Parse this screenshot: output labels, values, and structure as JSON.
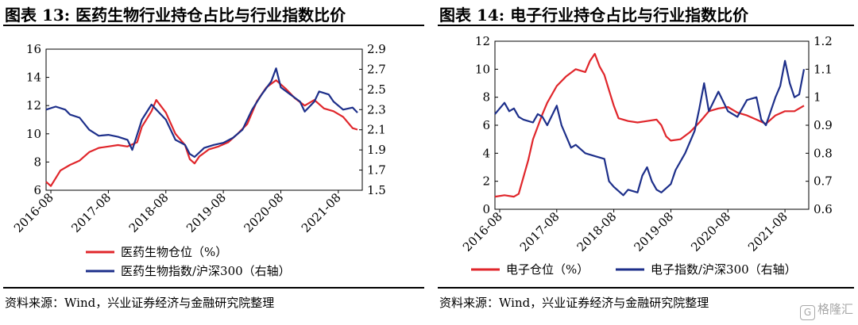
{
  "chart_data": [
    {
      "type": "line",
      "title": "图表 13:  医药生物行业持仓占比与行业指数比价",
      "source": "资料来源：Wind，兴业证券经济与金融研究院整理",
      "x_ticks": [
        "2016-08",
        "2017-08",
        "2018-08",
        "2019-08",
        "2020-08",
        "2021-08"
      ],
      "x_range": [
        "2016-07",
        "2022-01"
      ],
      "y_left": {
        "min": 6,
        "max": 16,
        "ticks": [
          "6",
          "8",
          "10",
          "12",
          "14",
          "16"
        ]
      },
      "y_right": {
        "min": 1.5,
        "max": 2.9,
        "ticks": [
          "1.5",
          "1.7",
          "1.9",
          "2.1",
          "2.3",
          "2.5",
          "2.7",
          "2.9"
        ]
      },
      "grid": false,
      "legend_position": "bottom-center",
      "series": [
        {
          "name": "医药生物仓位（%）",
          "axis": "left",
          "color": "#e0262b",
          "points": [
            [
              "2016-07",
              6.6
            ],
            [
              "2016-08",
              6.3
            ],
            [
              "2016-10",
              7.4
            ],
            [
              "2016-12",
              7.8
            ],
            [
              "2017-02",
              8.1
            ],
            [
              "2017-04",
              8.7
            ],
            [
              "2017-06",
              9.0
            ],
            [
              "2017-08",
              9.1
            ],
            [
              "2017-10",
              9.2
            ],
            [
              "2017-12",
              9.1
            ],
            [
              "2018-02",
              9.4
            ],
            [
              "2018-03",
              10.5
            ],
            [
              "2018-05",
              11.6
            ],
            [
              "2018-06",
              12.4
            ],
            [
              "2018-08",
              11.5
            ],
            [
              "2018-10",
              10.0
            ],
            [
              "2018-12",
              9.2
            ],
            [
              "2019-01",
              8.2
            ],
            [
              "2019-02",
              7.9
            ],
            [
              "2019-03",
              8.4
            ],
            [
              "2019-05",
              8.9
            ],
            [
              "2019-07",
              9.1
            ],
            [
              "2019-09",
              9.4
            ],
            [
              "2019-11",
              10.0
            ],
            [
              "2020-01",
              10.7
            ],
            [
              "2020-03",
              12.3
            ],
            [
              "2020-05",
              13.3
            ],
            [
              "2020-07",
              13.8
            ],
            [
              "2020-09",
              13.2
            ],
            [
              "2020-11",
              12.5
            ],
            [
              "2021-01",
              12.0
            ],
            [
              "2021-03",
              12.4
            ],
            [
              "2021-05",
              11.8
            ],
            [
              "2021-07",
              11.6
            ],
            [
              "2021-09",
              11.2
            ],
            [
              "2021-11",
              10.4
            ],
            [
              "2021-12",
              10.3
            ]
          ]
        },
        {
          "name": "医药生物指数/沪深300（右轴）",
          "axis": "right",
          "color": "#1d2f8a",
          "points": [
            [
              "2016-07",
              2.3
            ],
            [
              "2016-09",
              2.33
            ],
            [
              "2016-11",
              2.3
            ],
            [
              "2016-12",
              2.25
            ],
            [
              "2017-02",
              2.22
            ],
            [
              "2017-04",
              2.1
            ],
            [
              "2017-06",
              2.04
            ],
            [
              "2017-08",
              2.05
            ],
            [
              "2017-10",
              2.03
            ],
            [
              "2017-12",
              2.0
            ],
            [
              "2018-01",
              1.9
            ],
            [
              "2018-02",
              2.05
            ],
            [
              "2018-03",
              2.2
            ],
            [
              "2018-05",
              2.35
            ],
            [
              "2018-06",
              2.3
            ],
            [
              "2018-08",
              2.2
            ],
            [
              "2018-10",
              2.0
            ],
            [
              "2018-12",
              1.95
            ],
            [
              "2019-01",
              1.86
            ],
            [
              "2019-02",
              1.83
            ],
            [
              "2019-04",
              1.92
            ],
            [
              "2019-06",
              1.95
            ],
            [
              "2019-08",
              1.97
            ],
            [
              "2019-10",
              2.02
            ],
            [
              "2019-12",
              2.1
            ],
            [
              "2020-02",
              2.3
            ],
            [
              "2020-04",
              2.45
            ],
            [
              "2020-06",
              2.58
            ],
            [
              "2020-07",
              2.71
            ],
            [
              "2020-08",
              2.52
            ],
            [
              "2020-10",
              2.45
            ],
            [
              "2020-12",
              2.38
            ],
            [
              "2021-01",
              2.28
            ],
            [
              "2021-03",
              2.38
            ],
            [
              "2021-04",
              2.48
            ],
            [
              "2021-06",
              2.45
            ],
            [
              "2021-07",
              2.38
            ],
            [
              "2021-09",
              2.3
            ],
            [
              "2021-11",
              2.32
            ],
            [
              "2021-12",
              2.27
            ]
          ]
        }
      ]
    },
    {
      "type": "line",
      "title": "图表 14:  电子行业持仓占比与行业指数比价",
      "source": "资料来源：Wind，兴业证券经济与金融研究院整理",
      "x_ticks": [
        "2016-08",
        "2017-08",
        "2018-08",
        "2019-08",
        "2020-08",
        "2021-08"
      ],
      "x_range": [
        "2016-07",
        "2022-01"
      ],
      "y_left": {
        "min": 0,
        "max": 12,
        "ticks": [
          "0",
          "2",
          "4",
          "6",
          "8",
          "10",
          "12"
        ]
      },
      "y_right": {
        "min": 0.6,
        "max": 1.2,
        "ticks": [
          "0.6",
          "0.7",
          "0.8",
          "0.9",
          "1",
          "1.1",
          "1.2"
        ]
      },
      "grid": false,
      "legend_position": "bottom-center",
      "series": [
        {
          "name": "电子仓位（%）",
          "axis": "left",
          "color": "#e0262b",
          "points": [
            [
              "2016-07",
              0.9
            ],
            [
              "2016-09",
              1.0
            ],
            [
              "2016-11",
              0.9
            ],
            [
              "2016-12",
              1.1
            ],
            [
              "2017-02",
              3.5
            ],
            [
              "2017-03",
              5.0
            ],
            [
              "2017-05",
              6.8
            ],
            [
              "2017-06",
              7.6
            ],
            [
              "2017-08",
              8.8
            ],
            [
              "2017-10",
              9.5
            ],
            [
              "2017-12",
              10.0
            ],
            [
              "2018-02",
              9.8
            ],
            [
              "2018-03",
              10.6
            ],
            [
              "2018-04",
              11.1
            ],
            [
              "2018-05",
              10.2
            ],
            [
              "2018-06",
              9.6
            ],
            [
              "2018-07",
              8.5
            ],
            [
              "2018-08",
              7.4
            ],
            [
              "2018-09",
              6.5
            ],
            [
              "2018-11",
              6.3
            ],
            [
              "2019-01",
              6.2
            ],
            [
              "2019-03",
              6.3
            ],
            [
              "2019-05",
              6.4
            ],
            [
              "2019-06",
              6.0
            ],
            [
              "2019-07",
              5.2
            ],
            [
              "2019-08",
              4.9
            ],
            [
              "2019-10",
              5.0
            ],
            [
              "2019-12",
              5.5
            ],
            [
              "2020-02",
              6.2
            ],
            [
              "2020-04",
              7.0
            ],
            [
              "2020-06",
              7.2
            ],
            [
              "2020-08",
              7.3
            ],
            [
              "2020-10",
              6.9
            ],
            [
              "2020-12",
              6.7
            ],
            [
              "2021-02",
              6.4
            ],
            [
              "2021-04",
              6.1
            ],
            [
              "2021-06",
              6.7
            ],
            [
              "2021-08",
              7.0
            ],
            [
              "2021-10",
              7.0
            ],
            [
              "2021-12",
              7.4
            ]
          ]
        },
        {
          "name": "电子指数/沪深300（右轴）",
          "axis": "right",
          "color": "#1d2f8a",
          "points": [
            [
              "2016-07",
              0.94
            ],
            [
              "2016-08",
              0.96
            ],
            [
              "2016-09",
              0.98
            ],
            [
              "2016-10",
              0.95
            ],
            [
              "2016-11",
              0.96
            ],
            [
              "2016-12",
              0.93
            ],
            [
              "2017-01",
              0.92
            ],
            [
              "2017-03",
              0.91
            ],
            [
              "2017-04",
              0.94
            ],
            [
              "2017-05",
              0.93
            ],
            [
              "2017-06",
              0.9
            ],
            [
              "2017-08",
              0.97
            ],
            [
              "2017-09",
              0.9
            ],
            [
              "2017-11",
              0.82
            ],
            [
              "2017-12",
              0.83
            ],
            [
              "2018-02",
              0.8
            ],
            [
              "2018-04",
              0.79
            ],
            [
              "2018-06",
              0.78
            ],
            [
              "2018-07",
              0.7
            ],
            [
              "2018-08",
              0.68
            ],
            [
              "2018-10",
              0.65
            ],
            [
              "2018-11",
              0.67
            ],
            [
              "2019-01",
              0.66
            ],
            [
              "2019-02",
              0.72
            ],
            [
              "2019-03",
              0.75
            ],
            [
              "2019-04",
              0.7
            ],
            [
              "2019-05",
              0.67
            ],
            [
              "2019-06",
              0.66
            ],
            [
              "2019-08",
              0.69
            ],
            [
              "2019-09",
              0.74
            ],
            [
              "2019-11",
              0.8
            ],
            [
              "2020-01",
              0.88
            ],
            [
              "2020-02",
              0.96
            ],
            [
              "2020-03",
              1.05
            ],
            [
              "2020-04",
              0.95
            ],
            [
              "2020-06",
              1.02
            ],
            [
              "2020-08",
              0.95
            ],
            [
              "2020-10",
              0.93
            ],
            [
              "2020-12",
              0.99
            ],
            [
              "2021-02",
              1.0
            ],
            [
              "2021-03",
              0.92
            ],
            [
              "2021-04",
              0.9
            ],
            [
              "2021-05",
              0.95
            ],
            [
              "2021-06",
              1.0
            ],
            [
              "2021-07",
              1.04
            ],
            [
              "2021-08",
              1.13
            ],
            [
              "2021-09",
              1.05
            ],
            [
              "2021-10",
              1.0
            ],
            [
              "2021-11",
              1.01
            ],
            [
              "2021-12",
              1.1
            ]
          ]
        }
      ]
    }
  ],
  "watermark": {
    "logo": "G",
    "text": "格隆汇"
  }
}
